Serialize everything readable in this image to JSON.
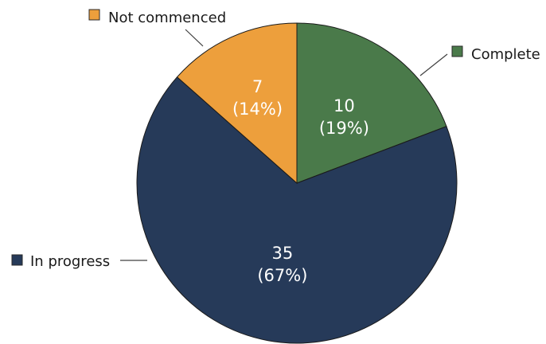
{
  "chart_data": {
    "type": "pie",
    "title": "",
    "legend_placement": "callouts",
    "slices": [
      {
        "name": "Complete",
        "value": 10,
        "percent": "19%",
        "count_label": "10",
        "percent_label": "(19%)",
        "color": "#4a7a4a"
      },
      {
        "name": "In progress",
        "value": 35,
        "percent": "67%",
        "count_label": "35",
        "percent_label": "(67%)",
        "color": "#263a59"
      },
      {
        "name": "Not commenced",
        "value": 7,
        "percent": "14%",
        "count_label": "7",
        "percent_label": "(14%)",
        "color": "#ed9f3c"
      }
    ]
  }
}
